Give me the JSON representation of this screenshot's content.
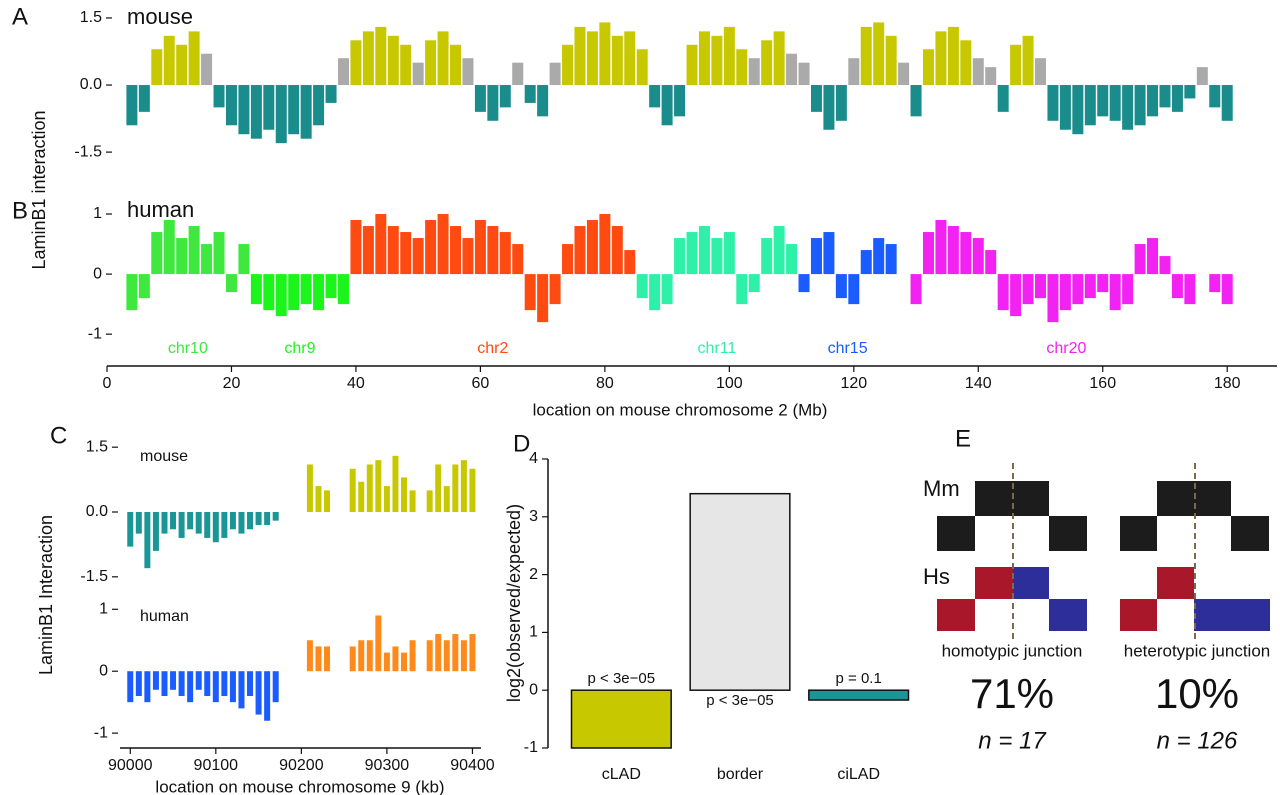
{
  "chart_data": [
    {
      "type": "bar",
      "panel": "A",
      "title": "mouse",
      "ylabel": "LaminB1 interaction",
      "xlim": [
        0,
        188
      ],
      "ylim": [
        -1.9,
        1.7
      ],
      "yticks": [
        1.5,
        {
          "value": 0,
          "label": "0.0"
        },
        -1.5
      ],
      "series": [
        {
          "color": "#c8c800",
          "x": [
            8,
            10,
            12,
            14,
            40,
            42,
            44,
            46,
            48,
            52,
            54,
            56,
            74,
            76,
            78,
            80,
            82,
            84,
            86,
            94,
            96,
            98,
            100,
            102,
            106,
            108,
            122,
            124,
            126,
            132,
            134,
            136,
            138,
            146,
            148
          ],
          "values": [
            0.8,
            1.1,
            0.9,
            1.2,
            1.0,
            1.2,
            1.3,
            1.1,
            0.9,
            1.0,
            1.2,
            0.9,
            0.9,
            1.3,
            1.2,
            1.4,
            1.1,
            1.2,
            0.8,
            0.9,
            1.2,
            1.1,
            1.3,
            0.8,
            1.0,
            1.2,
            1.3,
            1.4,
            1.1,
            0.8,
            1.2,
            1.3,
            1.0,
            0.9,
            1.1
          ]
        },
        {
          "color": "#aaaaaa",
          "x": [
            16,
            38,
            50,
            58,
            66,
            72,
            104,
            110,
            112,
            120,
            128,
            140,
            142,
            150,
            176
          ],
          "values": [
            0.7,
            0.6,
            0.5,
            0.6,
            0.5,
            0.5,
            0.6,
            0.7,
            0.5,
            0.6,
            0.5,
            0.6,
            0.4,
            0.6,
            0.4
          ]
        },
        {
          "color": "#1a8c8c",
          "x": [
            4,
            6,
            18,
            20,
            22,
            24,
            26,
            28,
            30,
            32,
            34,
            36,
            60,
            62,
            64,
            68,
            70,
            88,
            90,
            92,
            114,
            116,
            118,
            130,
            144,
            152,
            154,
            156,
            158,
            160,
            162,
            164,
            166,
            168,
            170,
            172,
            174,
            178,
            180
          ],
          "values": [
            -0.9,
            -0.6,
            -0.5,
            -0.9,
            -1.1,
            -1.2,
            -1.0,
            -1.3,
            -1.1,
            -1.2,
            -0.9,
            -0.4,
            -0.6,
            -0.8,
            -0.5,
            -0.4,
            -0.7,
            -0.5,
            -0.9,
            -0.7,
            -0.6,
            -1.0,
            -0.8,
            -0.7,
            -0.6,
            -0.8,
            -1.0,
            -1.1,
            -0.9,
            -0.7,
            -0.8,
            -1.0,
            -0.9,
            -0.7,
            -0.5,
            -0.6,
            -0.3,
            -0.5,
            -0.8
          ]
        }
      ]
    },
    {
      "type": "bar",
      "panel": "B",
      "title": "human",
      "xlabel": "location on mouse chromosome 2 (Mb)",
      "xlim": [
        0,
        188
      ],
      "ylim": [
        -1.53,
        1.3
      ],
      "xticks": [
        0,
        20,
        40,
        60,
        80,
        100,
        120,
        140,
        160,
        180
      ],
      "yticks": [
        1,
        0,
        -1
      ],
      "series": [
        {
          "name": "chr10",
          "color": "#3ee83e",
          "x": [
            4,
            6,
            8,
            10,
            12,
            14,
            16,
            18,
            20,
            22
          ],
          "values": [
            -0.6,
            -0.4,
            0.7,
            0.9,
            0.6,
            0.8,
            0.5,
            0.7,
            -0.3,
            0.5
          ]
        },
        {
          "name": "chr9",
          "color": "#1cf51c",
          "x": [
            24,
            26,
            28,
            30,
            32,
            34,
            36,
            38
          ],
          "values": [
            -0.5,
            -0.6,
            -0.7,
            -0.6,
            -0.5,
            -0.6,
            -0.4,
            -0.5
          ]
        },
        {
          "name": "chr2",
          "color": "#ff4a12",
          "x": [
            40,
            42,
            44,
            46,
            48,
            50,
            52,
            54,
            56,
            58,
            60,
            62,
            64,
            66,
            68,
            70,
            72,
            74,
            76,
            78,
            80,
            82,
            84
          ],
          "values": [
            0.9,
            0.8,
            1.0,
            0.8,
            0.7,
            0.6,
            0.9,
            1.0,
            0.8,
            0.6,
            0.9,
            0.8,
            0.7,
            0.5,
            -0.6,
            -0.8,
            -0.5,
            0.5,
            0.8,
            0.9,
            1.0,
            0.8,
            0.4
          ]
        },
        {
          "name": "chr11",
          "color": "#2ef0a8",
          "x": [
            86,
            88,
            90,
            92,
            94,
            96,
            98,
            100,
            102,
            104,
            106,
            108,
            110
          ],
          "values": [
            -0.4,
            -0.6,
            -0.5,
            0.6,
            0.7,
            0.8,
            0.6,
            0.7,
            -0.5,
            -0.3,
            0.6,
            0.8,
            0.5
          ]
        },
        {
          "name": "chr15",
          "color": "#1a5cff",
          "x": [
            112,
            114,
            116,
            118,
            120,
            122,
            124,
            126
          ],
          "values": [
            -0.3,
            0.6,
            0.7,
            -0.4,
            -0.5,
            0.4,
            0.6,
            0.5
          ]
        },
        {
          "name": "chr20",
          "color": "#f222f2",
          "x": [
            130,
            132,
            134,
            136,
            138,
            140,
            142,
            144,
            146,
            148,
            150,
            152,
            154,
            156,
            158,
            160,
            162,
            164,
            166,
            168,
            170,
            172,
            174,
            178,
            180
          ],
          "values": [
            -0.5,
            0.7,
            0.9,
            0.8,
            0.7,
            0.6,
            0.4,
            -0.6,
            -0.7,
            -0.5,
            -0.4,
            -0.8,
            -0.6,
            -0.5,
            -0.4,
            -0.3,
            -0.6,
            -0.5,
            0.5,
            0.6,
            0.3,
            -0.4,
            -0.5,
            -0.3,
            -0.5
          ]
        }
      ]
    },
    {
      "type": "bar",
      "panel": "C",
      "title": "mouse",
      "ylabel": "LaminB1 Interaction",
      "xlim": [
        89988,
        90410
      ],
      "ylim": [
        -1.62,
        1.62
      ],
      "yticks": [
        1.5,
        {
          "value": 0,
          "label": "0.0"
        },
        -1.5
      ],
      "series": [
        {
          "color": "#1a9696",
          "x": [
            90000,
            90010,
            90020,
            90030,
            90040,
            90050,
            90060,
            90070,
            90080,
            90090,
            90100,
            90110,
            90120,
            90130,
            90140,
            90150,
            90160,
            90170
          ],
          "values": [
            -0.8,
            -0.5,
            -1.3,
            -0.9,
            -0.5,
            -0.4,
            -0.6,
            -0.4,
            -0.5,
            -0.6,
            -0.7,
            -0.6,
            -0.4,
            -0.5,
            -0.4,
            -0.3,
            -0.3,
            -0.2
          ]
        },
        {
          "color": "#c8c800",
          "x": [
            90210,
            90220,
            90230,
            90260,
            90270,
            90280,
            90290,
            90300,
            90310,
            90320,
            90330,
            90350,
            90360,
            90370,
            90380,
            90390,
            90400
          ],
          "values": [
            1.1,
            0.6,
            0.5,
            1.0,
            0.7,
            1.1,
            1.2,
            0.6,
            1.3,
            0.8,
            0.5,
            0.5,
            1.1,
            0.6,
            1.1,
            1.2,
            1.0
          ]
        }
      ]
    },
    {
      "type": "bar",
      "title": "human",
      "xlabel": "location on mouse chromosome 9 (kb)",
      "xlim": [
        89988,
        90410
      ],
      "ylim": [
        -1.24,
        1.15
      ],
      "xticks": [
        90000,
        90100,
        90200,
        90300,
        90400
      ],
      "yticks": [
        1,
        0,
        -1
      ],
      "series": [
        {
          "color": "#1a5cff",
          "x": [
            90000,
            90010,
            90020,
            90030,
            90040,
            90050,
            90060,
            90070,
            90080,
            90090,
            90100,
            90110,
            90120,
            90130,
            90140,
            90150,
            90160,
            90170
          ],
          "values": [
            -0.5,
            -0.4,
            -0.5,
            -0.3,
            -0.4,
            -0.3,
            -0.4,
            -0.5,
            -0.3,
            -0.4,
            -0.5,
            -0.4,
            -0.5,
            -0.6,
            -0.4,
            -0.7,
            -0.8,
            -0.5
          ]
        },
        {
          "color": "#ff8a1a",
          "x": [
            90210,
            90220,
            90230,
            90260,
            90270,
            90280,
            90290,
            90300,
            90310,
            90320,
            90330,
            90350,
            90360,
            90370,
            90380,
            90390,
            90400
          ],
          "values": [
            0.5,
            0.4,
            0.4,
            0.4,
            0.5,
            0.5,
            0.9,
            0.3,
            0.4,
            0.3,
            0.5,
            0.5,
            0.6,
            0.5,
            0.6,
            0.5,
            0.6
          ]
        }
      ]
    },
    {
      "type": "bar",
      "panel": "D",
      "ylabel": "log2(observed/expected)",
      "categories": [
        "cLAD",
        "border",
        "ciLAD"
      ],
      "values": [
        -1,
        3.4,
        -0.17
      ],
      "colors": [
        "#c8c800",
        "#e6e6e6",
        "#1a9696"
      ],
      "annotations": [
        "p < 3e−05",
        "p < 3e−05",
        "p = 0.1"
      ],
      "ylim": [
        -1,
        4
      ],
      "yticks": [
        4,
        3,
        2,
        1,
        0,
        -1
      ]
    }
  ],
  "panel_e": {
    "label": "E",
    "rows": [
      "Mm",
      "Hs"
    ],
    "junctions": [
      {
        "title": "homotypic junction",
        "percent": "71%",
        "n": "n = 17"
      },
      {
        "title": "heterotypic junction",
        "percent": "10%",
        "n": "n = 126"
      }
    ]
  }
}
